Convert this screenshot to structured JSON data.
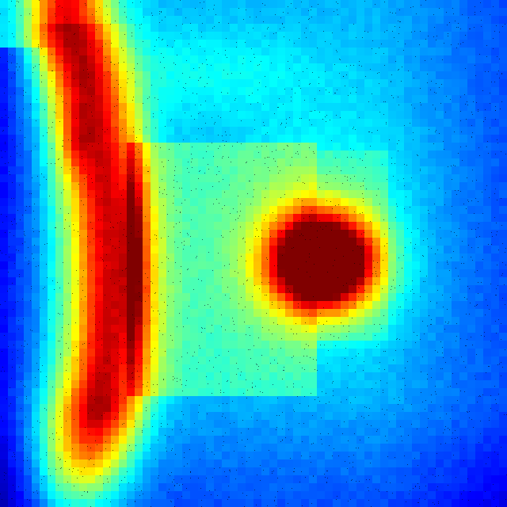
{
  "image": {
    "kind": "jet-colormap-heatmap",
    "colormap": "jet",
    "colors": {
      "low": "#00007f",
      "mid_low": "#0080ff",
      "mid": "#7fff7f",
      "mid_high": "#ff8000",
      "high": "#7f0000"
    }
  }
}
